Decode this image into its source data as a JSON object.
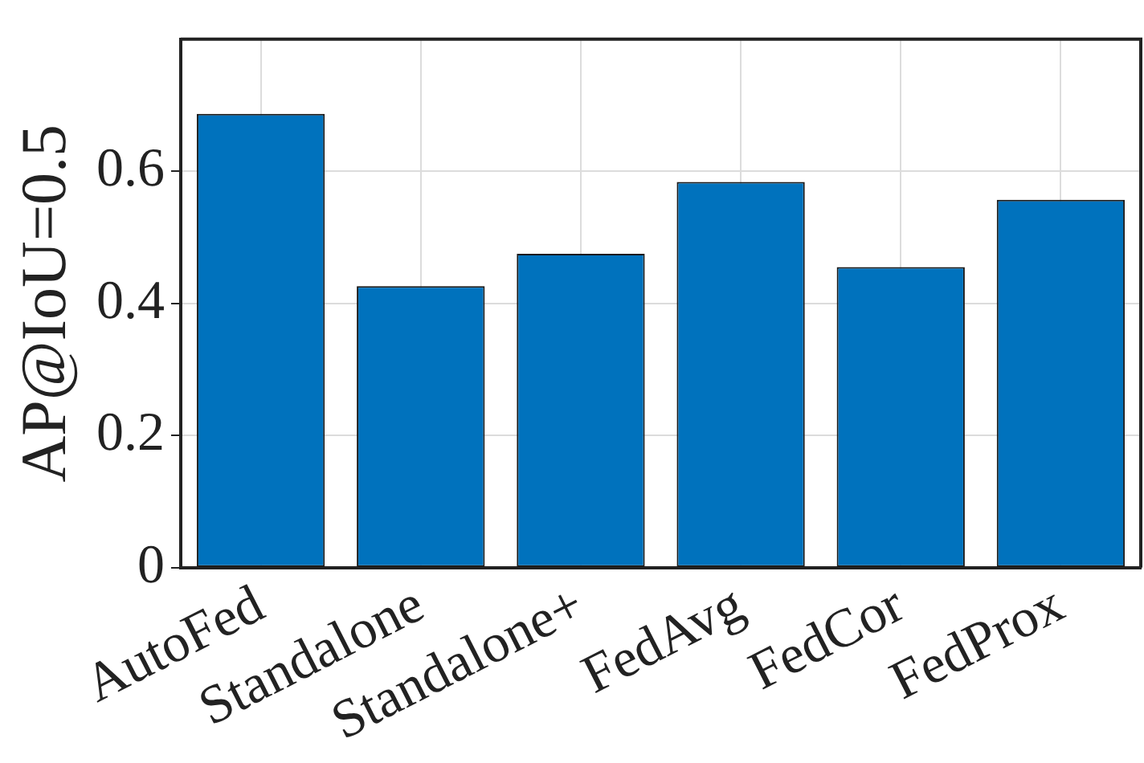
{
  "chart_data": {
    "type": "bar",
    "ylabel": "AP@IoU=0.5",
    "categories": [
      "AutoFed",
      "Standalone",
      "Standalone+",
      "FedAvg",
      "FedCor",
      "FedProx"
    ],
    "values": [
      0.687,
      0.426,
      0.475,
      0.584,
      0.455,
      0.557
    ],
    "color": "#0072bd",
    "ylim": [
      0,
      0.8
    ],
    "yticks": [
      0,
      0.2,
      0.4,
      0.6
    ],
    "grid": true,
    "legend": false
  }
}
